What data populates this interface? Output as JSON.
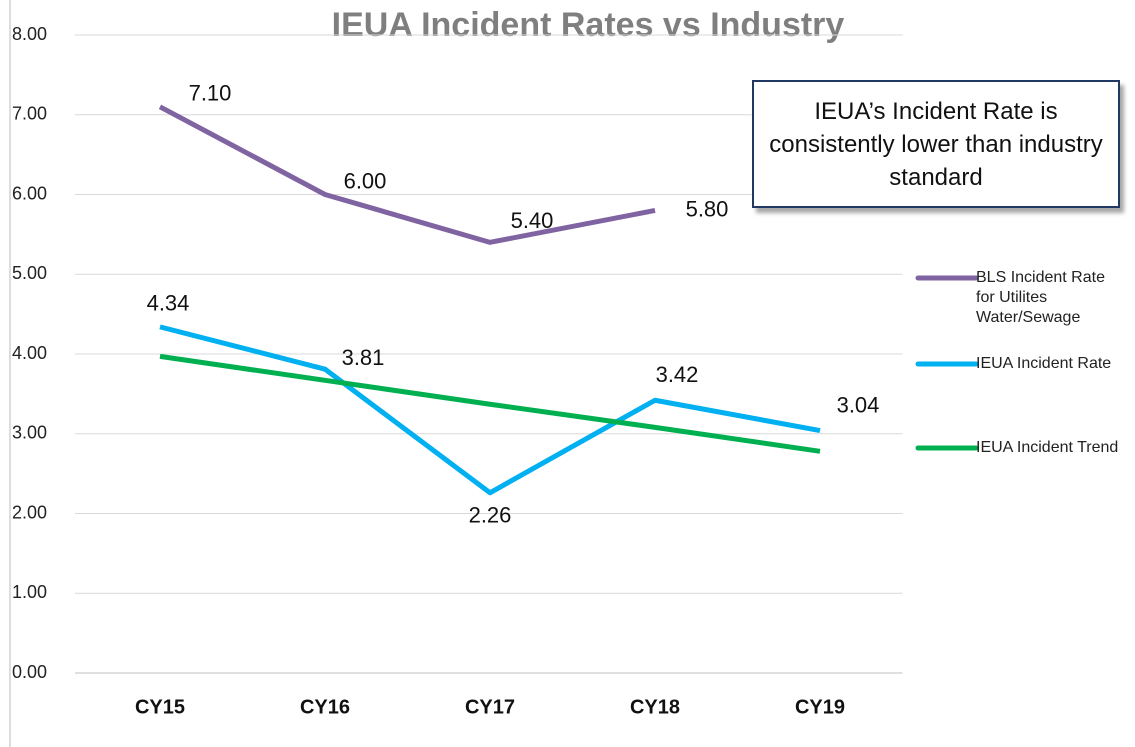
{
  "chart_data": {
    "type": "line",
    "title": "IEUA Incident Rates vs Industry",
    "annotation": "IEUA’s Incident Rate is consistently lower than industry standard",
    "categories": [
      "CY15",
      "CY16",
      "CY17",
      "CY18",
      "CY19"
    ],
    "series": [
      {
        "name": "BLS Incident Rate for Utilites Water/Sewage",
        "color": "#8064a2",
        "values": [
          7.1,
          6.0,
          5.4,
          5.8,
          null
        ],
        "value_labels": [
          "7.10",
          "6.00",
          "5.40",
          "5.80",
          null
        ]
      },
      {
        "name": "IEUA Incident Rate",
        "color": "#00b0f0",
        "values": [
          4.34,
          3.81,
          2.26,
          3.42,
          3.04
        ],
        "value_labels": [
          "4.34",
          "3.81",
          "2.26",
          "3.42",
          "3.04"
        ]
      },
      {
        "name": "IEUA Incident Trend",
        "color": "#00b050",
        "values": [
          3.97,
          3.67,
          3.37,
          3.08,
          2.78
        ]
      }
    ],
    "ylim": [
      0,
      8
    ],
    "yticks": [
      {
        "value": 0,
        "label": "0.00"
      },
      {
        "value": 1,
        "label": "1.00"
      },
      {
        "value": 2,
        "label": "2.00"
      },
      {
        "value": 3,
        "label": "3.00"
      },
      {
        "value": 4,
        "label": "4.00"
      },
      {
        "value": 5,
        "label": "5.00"
      },
      {
        "value": 6,
        "label": "6.00"
      },
      {
        "value": 7,
        "label": "7.00"
      },
      {
        "value": 8,
        "label": "8.00"
      }
    ],
    "grid": true,
    "legend": "right"
  }
}
